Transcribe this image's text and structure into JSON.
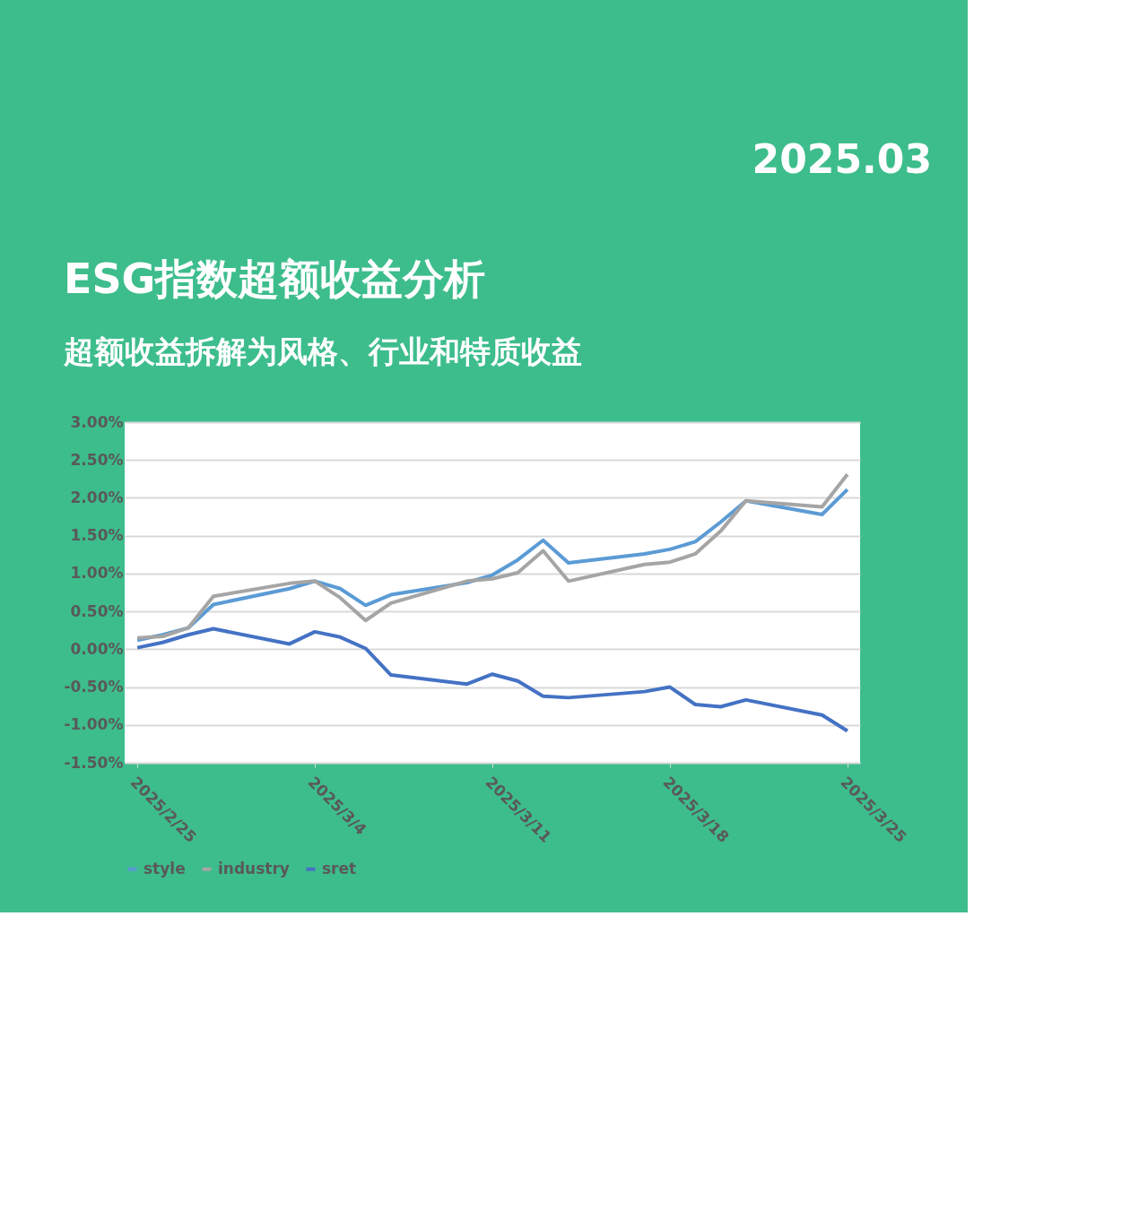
{
  "chart_data": {
    "type": "line",
    "title": "ESG指数超额收益分析",
    "subtitle": "超额收益拆解为风格、行业和特质收益",
    "annotations": [
      "2025.03"
    ],
    "x": [
      "2025-02-25",
      "2025-02-26",
      "2025-02-27",
      "2025-02-28",
      "2025-03-03",
      "2025-03-04",
      "2025-03-05",
      "2025-03-06",
      "2025-03-07",
      "2025-03-10",
      "2025-03-11",
      "2025-03-12",
      "2025-03-13",
      "2025-03-14",
      "2025-03-17",
      "2025-03-18",
      "2025-03-19",
      "2025-03-20",
      "2025-03-21",
      "2025-03-24",
      "2025-03-25"
    ],
    "series": [
      {
        "name": "style",
        "color": "#5b9bd5",
        "values": [
          0.12,
          0.19,
          0.28,
          0.59,
          0.8,
          0.9,
          0.8,
          0.58,
          0.72,
          0.88,
          0.98,
          1.18,
          1.44,
          1.14,
          1.26,
          1.32,
          1.42,
          1.68,
          1.96,
          1.78,
          2.11
        ]
      },
      {
        "name": "industry",
        "color": "#a5a5a5",
        "values": [
          0.15,
          0.17,
          0.28,
          0.7,
          0.87,
          0.9,
          0.68,
          0.38,
          0.61,
          0.9,
          0.93,
          1.01,
          1.3,
          0.9,
          1.12,
          1.15,
          1.26,
          1.56,
          1.96,
          1.88,
          2.31
        ]
      },
      {
        "name": "sret",
        "color": "#4472c4",
        "values": [
          0.02,
          0.09,
          0.19,
          0.27,
          0.07,
          0.23,
          0.16,
          0.01,
          -0.34,
          -0.46,
          -0.33,
          -0.42,
          -0.62,
          -0.64,
          -0.56,
          -0.5,
          -0.73,
          -0.76,
          -0.67,
          -0.87,
          -1.08
        ]
      }
    ],
    "xlim": [
      "2025-02-24T12:00",
      "2025-03-25T12:00"
    ],
    "xticks": [
      {
        "value": "2025-02-25",
        "label": "2025/2/25"
      },
      {
        "value": "2025-03-04",
        "label": "2025/3/4"
      },
      {
        "value": "2025-03-11",
        "label": "2025/3/11"
      },
      {
        "value": "2025-03-18",
        "label": "2025/3/18"
      },
      {
        "value": "2025-03-25",
        "label": "2025/3/25"
      }
    ],
    "ylim": [
      -1.5,
      3
    ],
    "yticks": [
      {
        "value": 3,
        "label": "3.00%"
      },
      {
        "value": 2.5,
        "label": "2.50%"
      },
      {
        "value": 2,
        "label": "2.00%"
      },
      {
        "value": 1.5,
        "label": "1.50%"
      },
      {
        "value": 1,
        "label": "1.00%"
      },
      {
        "value": 0.5,
        "label": "0.50%"
      },
      {
        "value": 0,
        "label": "0.00%"
      },
      {
        "value": -0.5,
        "label": "-0.50%"
      },
      {
        "value": -1,
        "label": "-1.00%"
      },
      {
        "value": -1.5,
        "label": "-1.50%"
      }
    ],
    "grid": "y",
    "legend": "bottom",
    "marker": "none",
    "line_style": "solid"
  }
}
